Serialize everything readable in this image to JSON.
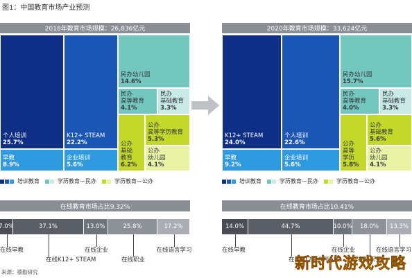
{
  "figure": {
    "title": "图1：中国教育市场产业预测",
    "source": "来源：德勤研究",
    "watermark": "新时代游戏攻略",
    "colors": {
      "navy": "#0f2f86",
      "blue": "#1b56b5",
      "sky": "#2f9ae0",
      "teal": "#73c7be",
      "paleTeal": "#c9e9e4",
      "lime": "#c3d82b",
      "paleYellow": "#eaf2a6",
      "barDark": "#4a4d54",
      "barMid": "#6e747c",
      "barLight": "#a9aeb4"
    }
  },
  "chart_data": [
    {
      "type": "treemap",
      "title": "2018年教育市场规模：26,836亿元",
      "cells": [
        {
          "label": "个人培训",
          "value": "25.7%",
          "group": "培训教育",
          "color": "#0f2f86"
        },
        {
          "label": "K12+ STEAM",
          "value": "22.2%",
          "group": "培训教育",
          "color": "#1b56b5"
        },
        {
          "label": "早教",
          "value": "8.9%",
          "group": "培训教育",
          "color": "#2f9ae0"
        },
        {
          "label": "企业培训",
          "value": "5.6%",
          "group": "培训教育",
          "color": "#2f9ae0"
        },
        {
          "label": "民办 幼儿园",
          "value": "14.6%",
          "group": "学历教育—民办",
          "color": "#73c7be"
        },
        {
          "label": "民办 高等教育",
          "value": "4.1%",
          "group": "学历教育—民办",
          "color": "#73c7be"
        },
        {
          "label": "民办 基础教育",
          "value": "3.3%",
          "group": "学历教育—民办",
          "color": "#c9e9e4"
        },
        {
          "label": "公办 基础 教育",
          "value": "6.2%",
          "group": "学历教育—公办",
          "color": "#c3d82b"
        },
        {
          "label": "公办 高等学历教育",
          "value": "5.3%",
          "group": "学历教育—公办",
          "color": "#c3d82b"
        },
        {
          "label": "公办 幼儿园",
          "value": "4.1%",
          "group": "学历教育—公办",
          "color": "#eaf2a6"
        }
      ]
    },
    {
      "type": "treemap",
      "title": "2020年教育市场规模：33,624亿元",
      "cells": [
        {
          "label": "K12+ STEAM",
          "value": "24.0%",
          "group": "培训教育",
          "color": "#0f2f86"
        },
        {
          "label": "个人培训",
          "value": "22.6%",
          "group": "培训教育",
          "color": "#1b56b5"
        },
        {
          "label": "早教",
          "value": "9.2%",
          "group": "培训教育",
          "color": "#2f9ae0"
        },
        {
          "label": "企业培训",
          "value": "5.6%",
          "group": "培训教育",
          "color": "#2f9ae0"
        },
        {
          "label": "民办 幼儿园",
          "value": "15.7%",
          "group": "学历教育—民办",
          "color": "#73c7be"
        },
        {
          "label": "民办 高等教育",
          "value": "4.0%",
          "group": "学历教育—民办",
          "color": "#73c7be"
        },
        {
          "label": "民办 基础教育",
          "value": "3.3%",
          "group": "学历教育—民办",
          "color": "#c9e9e4"
        },
        {
          "label": "公办 高等 学历",
          "value": "5.8%",
          "group": "学历教育—公办",
          "color": "#c3d82b"
        },
        {
          "label": "公办 基础教育",
          "value": "5.6%",
          "group": "学历教育—公办",
          "color": "#c3d82b"
        },
        {
          "label": "公办 幼儿园",
          "value": "4.1%",
          "group": "学历教育—公办",
          "color": "#eaf2a6"
        }
      ]
    },
    {
      "type": "bar",
      "stacked": true,
      "title": "在线教育市场占比9.32%",
      "categories": [
        "在线早教",
        "在线K12+ STEAM",
        "在线企业",
        "在线职业",
        "在线语言学习"
      ],
      "values": [
        7.0,
        37.1,
        13.0,
        25.8,
        17.2
      ],
      "value_labels": [
        "7.0%",
        "37.1%",
        "13.0%",
        "25.8%",
        "17.2%"
      ],
      "xlim": [
        0,
        100
      ]
    },
    {
      "type": "bar",
      "stacked": true,
      "title": "在线教育市场占比10.41%",
      "categories": [
        "在线早教",
        "在线K12+ STEAM",
        "在线企业",
        "在线职业",
        "在线语言学习"
      ],
      "values": [
        14.0,
        44.7,
        10.0,
        18.0,
        13.3
      ],
      "value_labels": [
        "14.0%",
        "44.7%",
        "10.0%",
        "18.0%",
        "13.3%"
      ],
      "xlim": [
        0,
        100
      ]
    }
  ],
  "legend": {
    "items": [
      {
        "label": "培训教育",
        "colors": [
          "#0f2f86",
          "#1b56b5",
          "#2f9ae0"
        ]
      },
      {
        "label": "学历教育—民办",
        "colors": [
          "#73c7be",
          "#c9e9e4"
        ]
      },
      {
        "label": "学历教育—公办",
        "colors": [
          "#c3d82b",
          "#eaf2a6"
        ]
      }
    ]
  }
}
